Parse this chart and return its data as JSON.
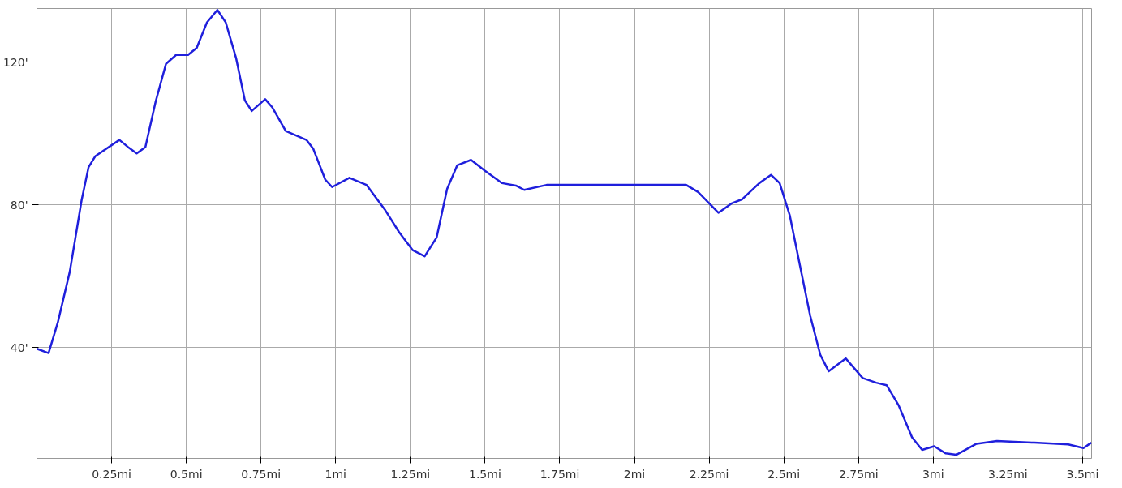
{
  "chart_data": {
    "type": "line",
    "x": [
      0,
      0.039,
      0.07,
      0.11,
      0.15,
      0.173,
      0.196,
      0.276,
      0.305,
      0.334,
      0.363,
      0.397,
      0.432,
      0.466,
      0.506,
      0.535,
      0.569,
      0.604,
      0.632,
      0.667,
      0.696,
      0.719,
      0.764,
      0.788,
      0.833,
      0.902,
      0.925,
      0.965,
      0.988,
      1.046,
      1.103,
      1.166,
      1.212,
      1.258,
      1.298,
      1.338,
      1.373,
      1.407,
      1.453,
      1.499,
      1.557,
      1.603,
      1.631,
      1.706,
      1.773,
      2.173,
      2.213,
      2.281,
      2.327,
      2.361,
      2.418,
      2.457,
      2.486,
      2.52,
      2.554,
      2.588,
      2.622,
      2.65,
      2.707,
      2.764,
      2.809,
      2.844,
      2.884,
      2.929,
      2.963,
      3.003,
      3.042,
      3.077,
      3.145,
      3.213,
      3.338,
      3.452,
      3.503,
      3.529
    ],
    "series": [
      {
        "color": "#1f1fdc",
        "values": [
          39.7,
          38.5,
          47.1,
          61.3,
          81.5,
          90.6,
          93.7,
          98.2,
          96.2,
          94.4,
          96.2,
          108.8,
          119.5,
          122,
          122,
          124,
          131.1,
          134.6,
          131.1,
          121,
          109.3,
          106.3,
          109.6,
          107.3,
          100.7,
          98.2,
          95.7,
          87.1,
          85,
          87.6,
          85.6,
          78.5,
          72.4,
          67.3,
          65.6,
          70.9,
          84.5,
          91.1,
          92.6,
          89.6,
          86.1,
          85.4,
          84.2,
          85.6,
          85.6,
          85.6,
          83.6,
          77.8,
          80.5,
          81.6,
          86.1,
          88.4,
          86.1,
          77,
          63,
          49,
          38,
          33.4,
          37,
          31.5,
          30.2,
          29.5,
          23.9,
          14.9,
          11.4,
          12.4,
          10.4,
          10,
          13.1,
          13.9,
          13.4,
          12.9,
          11.9,
          13.4
        ]
      }
    ],
    "xlim": [
      0,
      3.53
    ],
    "ylim": [
      9,
      135
    ],
    "xticks": [
      {
        "value": 0.25,
        "label": "0.25mi"
      },
      {
        "value": 0.5,
        "label": "0.5mi"
      },
      {
        "value": 0.75,
        "label": "0.75mi"
      },
      {
        "value": 1,
        "label": "1mi"
      },
      {
        "value": 1.25,
        "label": "1.25mi"
      },
      {
        "value": 1.5,
        "label": "1.5mi"
      },
      {
        "value": 1.75,
        "label": "1.75mi"
      },
      {
        "value": 2,
        "label": "2mi"
      },
      {
        "value": 2.25,
        "label": "2.25mi"
      },
      {
        "value": 2.5,
        "label": "2.5mi"
      },
      {
        "value": 2.75,
        "label": "2.75mi"
      },
      {
        "value": 3,
        "label": "3mi"
      },
      {
        "value": 3.25,
        "label": "3.25mi"
      },
      {
        "value": 3.5,
        "label": "3.5mi"
      }
    ],
    "yticks": [
      {
        "value": 40,
        "label": "40'"
      },
      {
        "value": 80,
        "label": "80'"
      },
      {
        "value": 120,
        "label": "120'"
      }
    ],
    "grid": true,
    "marker": "none",
    "line_style": "solid"
  }
}
